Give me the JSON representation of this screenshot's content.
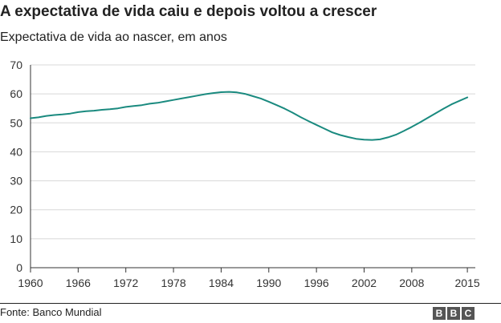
{
  "header": {
    "title": "A expectativa de vida caiu e depois voltou a crescer",
    "subtitle": "Expectativa de vida ao nascer, em anos"
  },
  "footer": {
    "source": "Fonte: Banco Mundial",
    "logo_letters": [
      "B",
      "B",
      "C"
    ]
  },
  "colors": {
    "line": "#1a8a7f",
    "grid": "#d8d8d8",
    "axis": "#333333"
  },
  "chart_data": {
    "type": "line",
    "title": "A expectativa de vida caiu e depois voltou a crescer",
    "subtitle": "Expectativa de vida ao nascer, em anos",
    "xlabel": "",
    "ylabel": "",
    "xlim": [
      1960,
      2016
    ],
    "ylim": [
      0,
      70
    ],
    "x_ticks": [
      1960,
      1966,
      1972,
      1978,
      1984,
      1990,
      1996,
      2002,
      2008,
      2015
    ],
    "y_ticks": [
      0,
      10,
      20,
      30,
      40,
      50,
      60,
      70
    ],
    "grid": true,
    "series": [
      {
        "x": [
          1960,
          1961,
          1962,
          1963,
          1964,
          1965,
          1966,
          1967,
          1968,
          1969,
          1970,
          1971,
          1972,
          1973,
          1974,
          1975,
          1976,
          1977,
          1978,
          1979,
          1980,
          1981,
          1982,
          1983,
          1984,
          1985,
          1986,
          1987,
          1988,
          1989,
          1990,
          1991,
          1992,
          1993,
          1994,
          1995,
          1996,
          1997,
          1998,
          1999,
          2000,
          2001,
          2002,
          2003,
          2004,
          2005,
          2006,
          2007,
          2008,
          2009,
          2010,
          2011,
          2012,
          2013,
          2014,
          2015
        ],
        "values": [
          51.6,
          51.9,
          52.4,
          52.7,
          52.9,
          53.2,
          53.7,
          54.0,
          54.2,
          54.5,
          54.7,
          55.0,
          55.5,
          55.8,
          56.1,
          56.6,
          56.9,
          57.4,
          57.9,
          58.4,
          58.9,
          59.4,
          59.9,
          60.3,
          60.6,
          60.7,
          60.5,
          60.0,
          59.2,
          58.4,
          57.3,
          56.1,
          54.9,
          53.5,
          52.0,
          50.6,
          49.3,
          48.0,
          46.7,
          45.8,
          45.1,
          44.5,
          44.2,
          44.1,
          44.3,
          45.0,
          45.9,
          47.2,
          48.6,
          50.1,
          51.7,
          53.3,
          54.9,
          56.4,
          57.6,
          58.8
        ]
      }
    ]
  }
}
